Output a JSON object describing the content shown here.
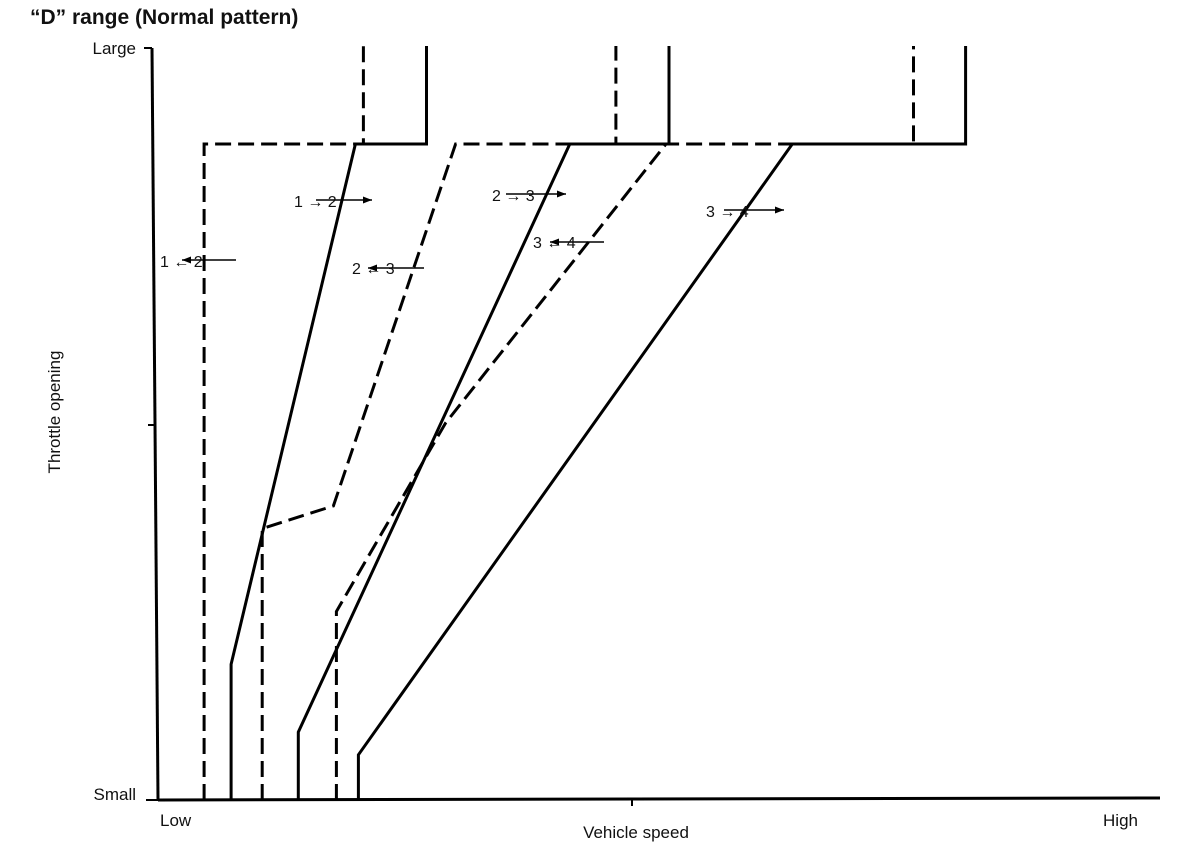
{
  "chart_data": {
    "type": "line",
    "title": "“D” range  (Normal pattern)",
    "xlabel": "Vehicle speed",
    "ylabel": "Throttle opening",
    "x_tick_labels": {
      "min": "Low",
      "max": "High"
    },
    "y_tick_labels": {
      "min": "Small",
      "max": "Large"
    },
    "xlim": [
      0,
      100
    ],
    "ylim": [
      0,
      100
    ],
    "grid": false,
    "legend": "none",
    "series": [
      {
        "label_text": "1 → 2",
        "style": "solid",
        "points": [
          [
            7.3,
            0
          ],
          [
            7.3,
            18
          ],
          [
            19.7,
            87
          ],
          [
            26.8,
            87
          ],
          [
            26.8,
            100
          ]
        ]
      },
      {
        "label_text": "1 ← 2",
        "style": "dashed",
        "points": [
          [
            4.6,
            0
          ],
          [
            4.6,
            87
          ],
          [
            20.5,
            87
          ],
          [
            20.5,
            100
          ]
        ]
      },
      {
        "label_text": "2 → 3",
        "style": "solid",
        "points": [
          [
            14.0,
            0
          ],
          [
            14.0,
            9
          ],
          [
            41.1,
            87
          ],
          [
            51.0,
            87
          ],
          [
            51.0,
            100
          ]
        ]
      },
      {
        "label_text": "2 ← 3",
        "style": "dashed",
        "points": [
          [
            10.4,
            0
          ],
          [
            10.4,
            36
          ],
          [
            17.5,
            39
          ],
          [
            29.7,
            87
          ],
          [
            50.0,
            87
          ],
          [
            45.7,
            87
          ],
          [
            45.7,
            100
          ]
        ]
      },
      {
        "label_text": "3 → 4",
        "style": "solid",
        "points": [
          [
            20.0,
            0
          ],
          [
            20.0,
            6
          ],
          [
            63.3,
            87
          ],
          [
            80.6,
            87
          ],
          [
            80.6,
            100
          ]
        ]
      },
      {
        "label_text": "3 ← 4",
        "style": "dashed",
        "points": [
          [
            17.8,
            0
          ],
          [
            17.8,
            25
          ],
          [
            28.7,
            50
          ],
          [
            50.7,
            87
          ],
          [
            75.4,
            87
          ],
          [
            75.4,
            100
          ]
        ]
      }
    ]
  }
}
